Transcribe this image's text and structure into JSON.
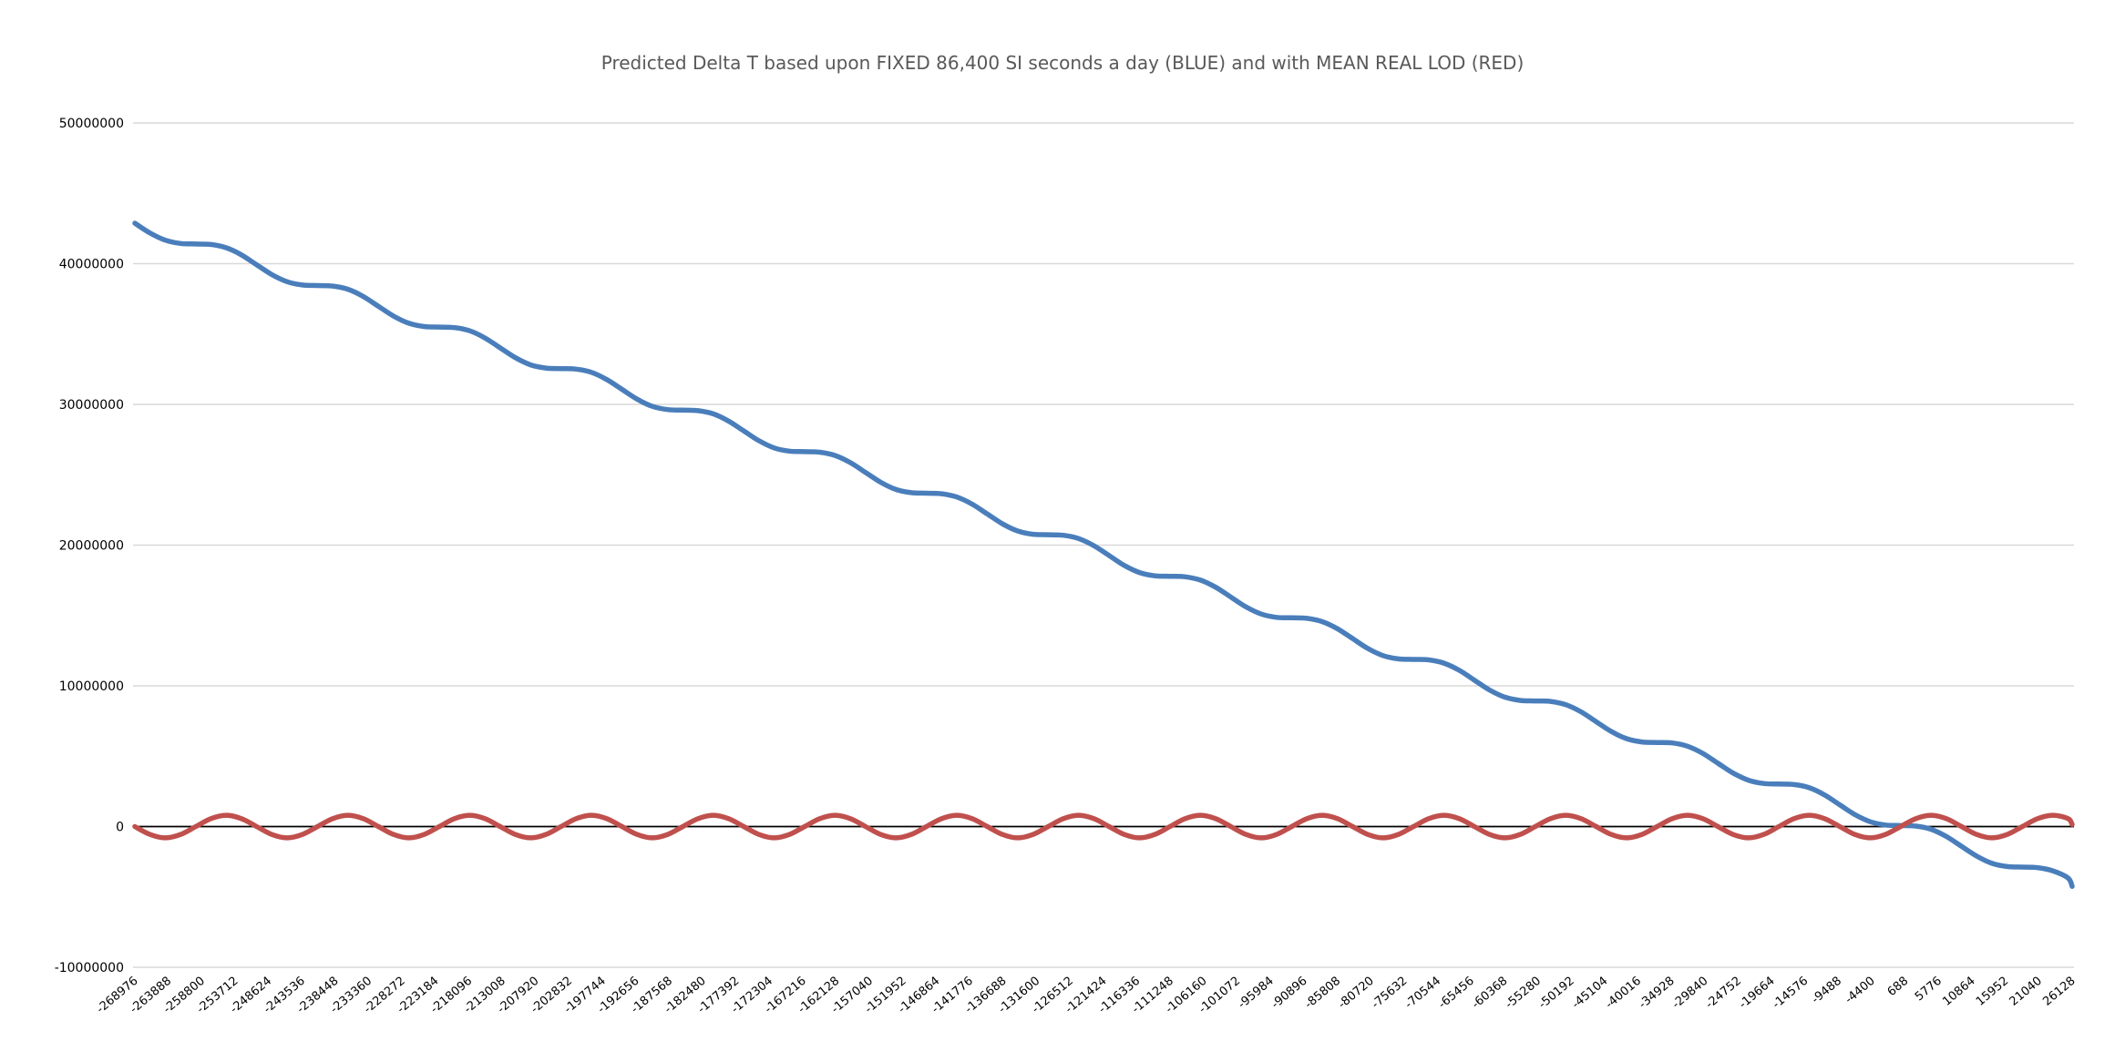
{
  "chart_data": {
    "type": "line",
    "title": "Predicted Delta T based upon FIXED 86,400 SI seconds a day (BLUE) and with MEAN REAL LOD (RED)",
    "xlabel": "",
    "ylabel": "",
    "ylim": [
      -10000000,
      50000000
    ],
    "yticks": [
      -10000000,
      0,
      10000000,
      20000000,
      30000000,
      40000000,
      50000000
    ],
    "ytick_labels": [
      "-10000000",
      "0",
      "10000000",
      "20000000",
      "30000000",
      "40000000",
      "50000000"
    ],
    "xlim": [
      -268976,
      26128
    ],
    "xtick_labels": [
      "-268976",
      "-263888",
      "-258800",
      "-253712",
      "-248624",
      "-243536",
      "-238448",
      "-233360",
      "-228272",
      "-223184",
      "-218096",
      "-213008",
      "-207920",
      "-202832",
      "-197744",
      "-192656",
      "-187568",
      "-182480",
      "-177392",
      "-172304",
      "-167216",
      "-162128",
      "-157040",
      "-151952",
      "-146864",
      "-141776",
      "-136688",
      "-131600",
      "-126512",
      "-121424",
      "-116336",
      "-111248",
      "-106160",
      "-101072",
      "-95984",
      "-90896",
      "-85808",
      "-80720",
      "-75632",
      "-70544",
      "-65456",
      "-60368",
      "-55280",
      "-50192",
      "-45104",
      "-40016",
      "-34928",
      "-29840",
      "-24752",
      "-19664",
      "-14576",
      "-9488",
      "-4400",
      "688",
      "5776",
      "10864",
      "15952",
      "21040",
      "26128"
    ],
    "grid": true,
    "legend": "none",
    "x": [
      -268976,
      -266657,
      -264338,
      -262020,
      -259701,
      -257382,
      -255063,
      -252745,
      -250426,
      -248107,
      -245788,
      -243470,
      -241151,
      -238832,
      -236513,
      -234195,
      -231876,
      -229557,
      -227238,
      -224920,
      -222601,
      -220282,
      -217963,
      -215645,
      -213326,
      -211007,
      -208688,
      -206370,
      -204051,
      -201732,
      -199413,
      -197095,
      -194776,
      -192457,
      -190138,
      -187820,
      -185501,
      -183182,
      -180863,
      -178545,
      -176226,
      -173907,
      -171588,
      -169270,
      -166951,
      -164632,
      -162313,
      -159995,
      -157676,
      -155357,
      -153038,
      -150720,
      -148401,
      -146082,
      -143763,
      -141445,
      -139126,
      -136807,
      -134488,
      -132170,
      -129851,
      -127532,
      -125213,
      -122895,
      -120576,
      -118257,
      -115938,
      -113620,
      -111301,
      -108982,
      -106663,
      -104345,
      -102026,
      -99707,
      -97388,
      -95070,
      -92751,
      -90432,
      -88113,
      -85795,
      -83476,
      -81157,
      -78838,
      -76520,
      -74201,
      -71882,
      -69563,
      -67245,
      -64926,
      -62607,
      -60288,
      -57970,
      -55651,
      -53332,
      -51013,
      -48695,
      -46376,
      -44057,
      -41738,
      -39420,
      -37101,
      -34782,
      -32463,
      -30145,
      -27826,
      -25507,
      -23188,
      -20870,
      -18551,
      -16232,
      -13913,
      -11595,
      -9276,
      -6957,
      -4638,
      -2320,
      -1,
      2318,
      4637,
      6955,
      9274,
      11593,
      13912,
      16230,
      18549,
      20868,
      23187,
      25505,
      26128
    ],
    "series": [
      {
        "color": "#4a7ebb",
        "values": [
          42876000,
          42175000,
          41668000,
          41437000,
          41400000,
          41363000,
          41132000,
          40625000,
          39924000,
          39223000,
          38716000,
          38485000,
          38448000,
          38411000,
          38180000,
          37673000,
          36972000,
          36271000,
          35764000,
          35533000,
          35496000,
          35459000,
          35228000,
          34721000,
          34020000,
          33319000,
          32812000,
          32581000,
          32544000,
          32507000,
          32276000,
          31769000,
          31068000,
          30367000,
          29860000,
          29629000,
          29592000,
          29555000,
          29324000,
          28817000,
          28116000,
          27415000,
          26908000,
          26677000,
          26640000,
          26603000,
          26372000,
          25865000,
          25164000,
          24463000,
          23956000,
          23725000,
          23688000,
          23651000,
          23420000,
          22913000,
          22212000,
          21511000,
          21004000,
          20773000,
          20736000,
          20699000,
          20468000,
          19961000,
          19260000,
          18559000,
          18052000,
          17821000,
          17784000,
          17747000,
          17516000,
          17009000,
          16308000,
          15607000,
          15100000,
          14869000,
          14832000,
          14795000,
          14564000,
          14057000,
          13356000,
          12655000,
          12148000,
          11917000,
          11880000,
          11843000,
          11612000,
          11105000,
          10404000,
          9703000,
          9196000,
          8965000,
          8928000,
          8891000,
          8660000,
          8153000,
          7452000,
          6751000,
          6244000,
          6013000,
          5976000,
          5939000,
          5708000,
          5201000,
          4500000,
          3799000,
          3292000,
          3061000,
          3024000,
          2987000,
          2756000,
          2249000,
          1548000,
          847000,
          340000,
          109000,
          72000,
          35000,
          -196000,
          -703000,
          -1404000,
          -2105000,
          -2612000,
          -2843000,
          -2880000,
          -2917000,
          -3148000,
          -3655000,
          -4250000
        ]
      },
      {
        "color": "#c0504d",
        "values": [
          0,
          -566000,
          -800000,
          -566000,
          0,
          566000,
          800000,
          566000,
          0,
          -566000,
          -800000,
          -566000,
          0,
          566000,
          800000,
          566000,
          0,
          -566000,
          -800000,
          -566000,
          0,
          566000,
          800000,
          566000,
          0,
          -566000,
          -800000,
          -566000,
          0,
          566000,
          800000,
          566000,
          0,
          -566000,
          -800000,
          -566000,
          0,
          566000,
          800000,
          566000,
          0,
          -566000,
          -800000,
          -566000,
          0,
          566000,
          800000,
          566000,
          0,
          -566000,
          -800000,
          -566000,
          0,
          566000,
          800000,
          566000,
          0,
          -566000,
          -800000,
          -566000,
          0,
          566000,
          800000,
          566000,
          0,
          -566000,
          -800000,
          -566000,
          0,
          566000,
          800000,
          566000,
          0,
          -566000,
          -800000,
          -566000,
          0,
          566000,
          800000,
          566000,
          0,
          -566000,
          -800000,
          -566000,
          0,
          566000,
          800000,
          566000,
          0,
          -566000,
          -800000,
          -566000,
          0,
          566000,
          800000,
          566000,
          0,
          -566000,
          -800000,
          -566000,
          0,
          566000,
          800000,
          566000,
          0,
          -566000,
          -800000,
          -566000,
          0,
          566000,
          800000,
          566000,
          0,
          -566000,
          -800000,
          -566000,
          0,
          566000,
          800000,
          566000,
          0,
          -566000,
          -800000,
          -566000,
          0,
          566000,
          800000,
          566000,
          150000
        ]
      }
    ],
    "colors": {
      "grid": "#d9d9d9",
      "zero_line": "#000000",
      "title": "#595959"
    }
  }
}
